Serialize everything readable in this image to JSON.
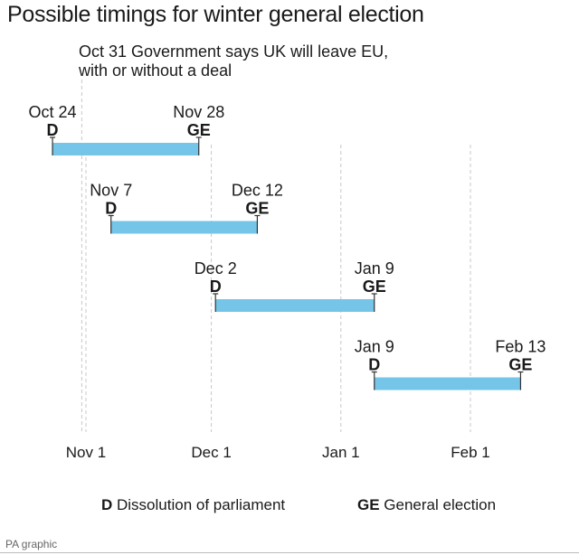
{
  "title": "Possible timings for winter general election",
  "credit": "PA graphic",
  "colors": {
    "bar": "#74c5e8",
    "text": "#1a1a1a",
    "grid": "#c8c8c8",
    "credit": "#666666"
  },
  "chart_data": {
    "type": "gantt",
    "title": "Possible timings for winter general election",
    "x_axis": {
      "ticks": [
        {
          "date": "2019-11-01",
          "label": "Nov 1"
        },
        {
          "date": "2019-12-01",
          "label": "Dec 1"
        },
        {
          "date": "2020-01-01",
          "label": "Jan 1"
        },
        {
          "date": "2020-02-01",
          "label": "Feb 1"
        }
      ],
      "grid": "dashed vertical"
    },
    "annotation": {
      "date": "2019-10-31",
      "lines": [
        "Oct 31 Government says UK will leave EU,",
        "with or without a deal"
      ]
    },
    "scenarios": [
      {
        "start": "2019-10-24",
        "end": "2019-11-28",
        "start_label": "Oct 24",
        "end_label": "Nov 28",
        "start_code": "D",
        "end_code": "GE"
      },
      {
        "start": "2019-11-07",
        "end": "2019-12-12",
        "start_label": "Nov 7",
        "end_label": "Dec 12",
        "start_code": "D",
        "end_code": "GE"
      },
      {
        "start": "2019-12-02",
        "end": "2020-01-09",
        "start_label": "Dec 2",
        "end_label": "Jan 9",
        "start_code": "D",
        "end_code": "GE"
      },
      {
        "start": "2020-01-09",
        "end": "2020-02-13",
        "start_label": "Jan 9",
        "end_label": "Feb 13",
        "start_code": "D",
        "end_code": "GE"
      }
    ],
    "legend": [
      {
        "code": "D",
        "text": "Dissolution of parliament"
      },
      {
        "code": "GE",
        "text": "General election"
      }
    ],
    "legend_position": "bottom"
  }
}
